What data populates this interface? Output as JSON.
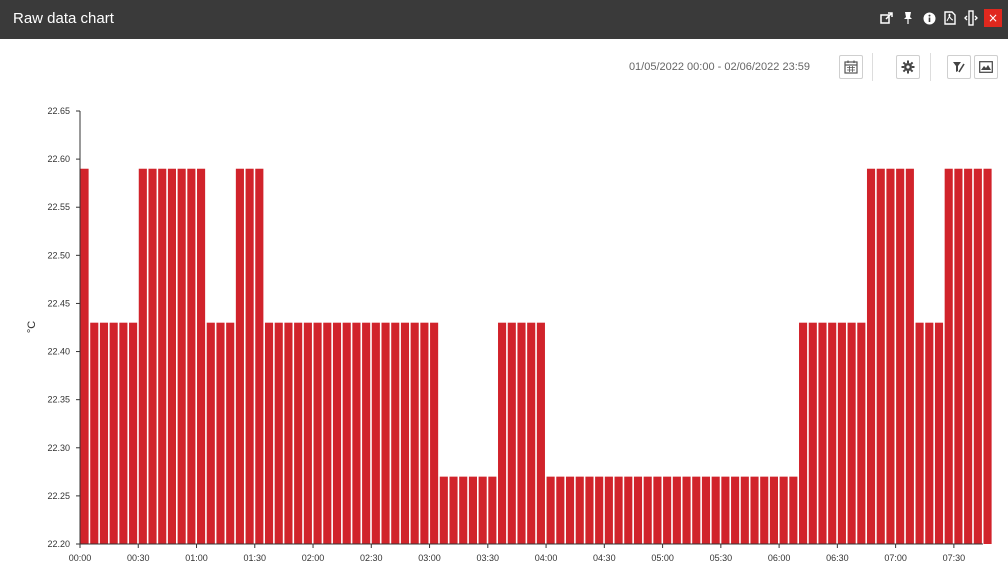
{
  "window": {
    "title": "Raw data chart",
    "icons": [
      "external-link-icon",
      "pin-icon",
      "info-icon",
      "pdf-icon",
      "resize-icon",
      "close-icon"
    ],
    "close_label": "×"
  },
  "toolbar": {
    "date_range": "01/05/2022 00:00 - 02/06/2022 23:59",
    "buttons": [
      "calendar-icon",
      "settings-icon",
      "highlight-icon",
      "image-icon"
    ]
  },
  "colors": {
    "bar": "#d1232b",
    "titlebar": "#3a3a3a",
    "close": "#e0281e"
  },
  "chart_data": {
    "type": "bar",
    "title": "",
    "xlabel": "",
    "ylabel": "°C",
    "ylim": [
      22.2,
      22.65
    ],
    "y_ticks": [
      "22.20",
      "22.25",
      "22.30",
      "22.35",
      "22.40",
      "22.45",
      "22.50",
      "22.55",
      "22.60",
      "22.65"
    ],
    "x_ticks": [
      "00:00",
      "00:30",
      "01:00",
      "01:30",
      "02:00",
      "02:30",
      "03:00",
      "03:30",
      "04:00",
      "04:30",
      "05:00",
      "05:30",
      "06:00",
      "06:30",
      "07:00",
      "07:30"
    ],
    "xlim_minutes": [
      0,
      465
    ],
    "bar_interval_minutes": 5,
    "grid": false,
    "values": [
      22.59,
      22.43,
      22.43,
      22.43,
      22.43,
      22.43,
      22.59,
      22.59,
      22.59,
      22.59,
      22.59,
      22.59,
      22.59,
      22.43,
      22.43,
      22.43,
      22.59,
      22.59,
      22.59,
      22.43,
      22.43,
      22.43,
      22.43,
      22.43,
      22.43,
      22.43,
      22.43,
      22.43,
      22.43,
      22.43,
      22.43,
      22.43,
      22.43,
      22.43,
      22.43,
      22.43,
      22.43,
      22.27,
      22.27,
      22.27,
      22.27,
      22.27,
      22.27,
      22.43,
      22.43,
      22.43,
      22.43,
      22.43,
      22.27,
      22.27,
      22.27,
      22.27,
      22.27,
      22.27,
      22.27,
      22.27,
      22.27,
      22.27,
      22.27,
      22.27,
      22.27,
      22.27,
      22.27,
      22.27,
      22.27,
      22.27,
      22.27,
      22.27,
      22.27,
      22.27,
      22.27,
      22.27,
      22.27,
      22.27,
      22.43,
      22.43,
      22.43,
      22.43,
      22.43,
      22.43,
      22.43,
      22.59,
      22.59,
      22.59,
      22.59,
      22.59,
      22.43,
      22.43,
      22.43,
      22.59,
      22.59,
      22.59,
      22.59,
      22.59
    ]
  }
}
